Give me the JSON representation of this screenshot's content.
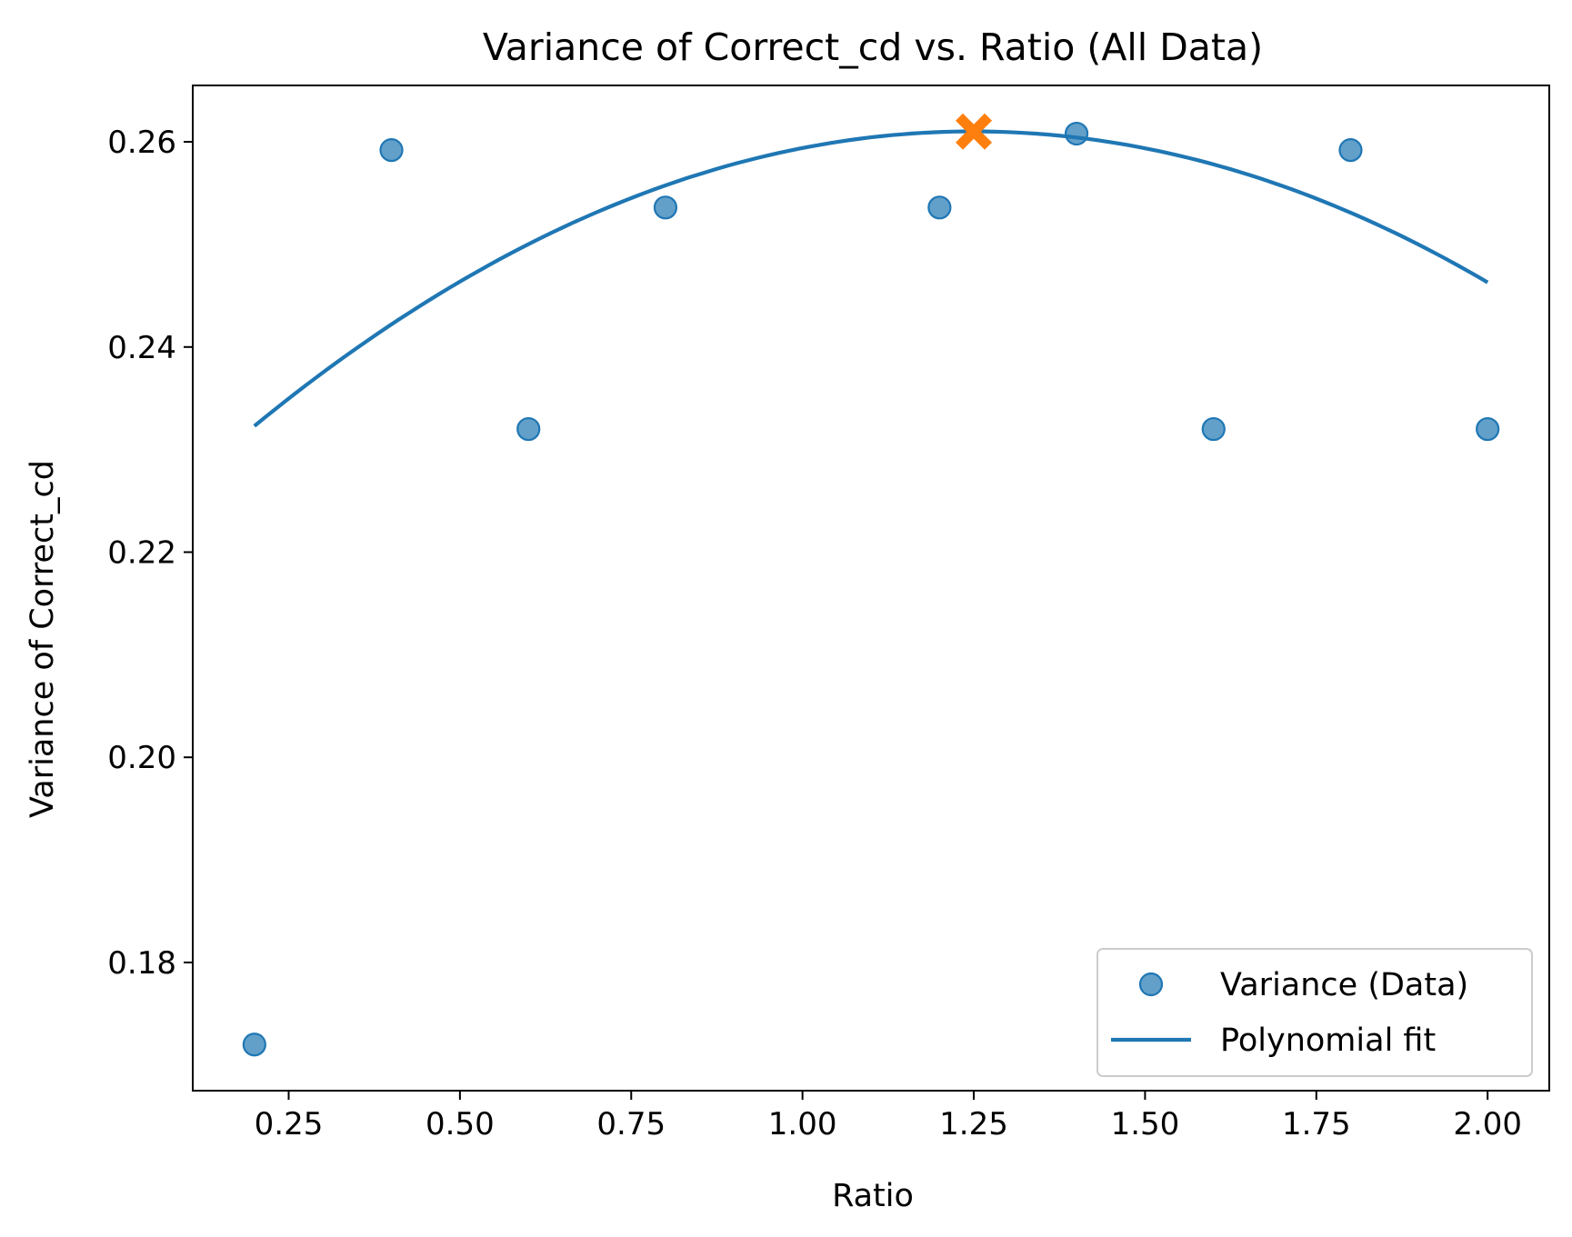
{
  "chart_data": {
    "type": "scatter",
    "title": "Variance of Correct_cd vs. Ratio (All Data)",
    "xlabel": "Ratio",
    "ylabel": "Variance of Correct_cd",
    "xlim": [
      0.11,
      2.09
    ],
    "ylim": [
      0.1675,
      0.2655
    ],
    "xticks": [
      0.25,
      0.5,
      0.75,
      1.0,
      1.25,
      1.5,
      1.75,
      2.0
    ],
    "xtick_labels": [
      "0.25",
      "0.50",
      "0.75",
      "1.00",
      "1.25",
      "1.50",
      "1.75",
      "2.00"
    ],
    "yticks": [
      0.18,
      0.2,
      0.22,
      0.24,
      0.26
    ],
    "ytick_labels": [
      "0.18",
      "0.20",
      "0.22",
      "0.24",
      "0.26"
    ],
    "grid": false,
    "legend_position": "lower-right",
    "series": [
      {
        "name": "Variance (Data)",
        "kind": "scatter",
        "color": "#1f77b4",
        "x": [
          0.2,
          0.4,
          0.6,
          0.8,
          1.2,
          1.4,
          1.6,
          1.8,
          2.0
        ],
        "y": [
          0.172,
          0.2592,
          0.232,
          0.2536,
          0.2536,
          0.2608,
          0.232,
          0.2592,
          0.232
        ]
      },
      {
        "name": "Polynomial fit",
        "kind": "line",
        "color": "#1f77b4",
        "x_range": [
          0.2,
          2.0
        ],
        "coefficients": [
          -0.0261,
          0.0652,
          0.2203
        ]
      }
    ],
    "marker": {
      "kind": "x",
      "color": "#ff7f0e",
      "x": 1.25,
      "y": 0.261
    }
  }
}
